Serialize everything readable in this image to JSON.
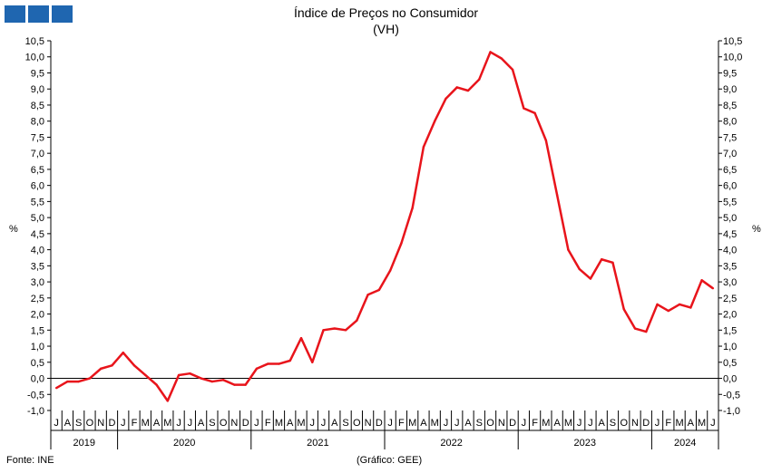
{
  "header": {
    "title": "Índice de Preços no Consumidor",
    "subtitle": "(VH)"
  },
  "footer": {
    "source": "Fonte: INE",
    "credit": "(Gráfico: GEE)"
  },
  "colors": {
    "logo": "#1f66b0",
    "series_line": "#e8141b",
    "axis": "#000000"
  },
  "chart_data": {
    "type": "line",
    "title": "Índice de Preços no Consumidor",
    "subtitle": "(VH)",
    "ylabel": "%",
    "ylabel_right": "%",
    "ylim": [
      -1.0,
      10.5
    ],
    "ytick_step": 0.5,
    "grid": false,
    "zero_line": true,
    "ytick_labels": [
      "-1,0",
      "-0,5",
      "0,0",
      "0,5",
      "1,0",
      "1,5",
      "2,0",
      "2,5",
      "3,0",
      "3,5",
      "4,0",
      "4,5",
      "5,0",
      "5,5",
      "6,0",
      "6,5",
      "7,0",
      "7,5",
      "8,0",
      "8,5",
      "9,0",
      "9,5",
      "10,0",
      "10,5"
    ],
    "month_labels": [
      "J",
      "A",
      "S",
      "O",
      "N",
      "D",
      "J",
      "F",
      "M",
      "A",
      "M",
      "J",
      "J",
      "A",
      "S",
      "O",
      "N",
      "D",
      "J",
      "F",
      "M",
      "A",
      "M",
      "J",
      "J",
      "A",
      "S",
      "O",
      "N",
      "D",
      "J",
      "F",
      "M",
      "A",
      "M",
      "J",
      "J",
      "A",
      "S",
      "O",
      "N",
      "D",
      "J",
      "F",
      "M",
      "A",
      "M",
      "J",
      "J",
      "A",
      "S",
      "O",
      "N",
      "D",
      "J",
      "F",
      "M",
      "A",
      "M",
      "J"
    ],
    "years": [
      {
        "label": "2019",
        "months": 6
      },
      {
        "label": "2020",
        "months": 12
      },
      {
        "label": "2021",
        "months": 12
      },
      {
        "label": "2022",
        "months": 12
      },
      {
        "label": "2023",
        "months": 12
      },
      {
        "label": "2024",
        "months": 6
      }
    ],
    "series": [
      {
        "values": [
          -0.3,
          -0.1,
          -0.1,
          0.0,
          0.3,
          0.4,
          0.8,
          0.4,
          0.1,
          -0.2,
          -0.7,
          0.1,
          0.15,
          0.0,
          -0.1,
          -0.05,
          -0.2,
          -0.2,
          0.3,
          0.45,
          0.45,
          0.55,
          1.25,
          0.5,
          1.5,
          1.55,
          1.5,
          1.8,
          2.6,
          2.75,
          3.35,
          4.2,
          5.3,
          7.2,
          8.0,
          8.7,
          9.05,
          8.95,
          9.3,
          10.15,
          9.95,
          9.6,
          8.4,
          8.25,
          7.4,
          5.7,
          4.0,
          3.4,
          3.1,
          3.7,
          3.6,
          2.15,
          1.55,
          1.45,
          2.3,
          2.1,
          2.3,
          2.2,
          3.05,
          2.8
        ]
      }
    ]
  }
}
